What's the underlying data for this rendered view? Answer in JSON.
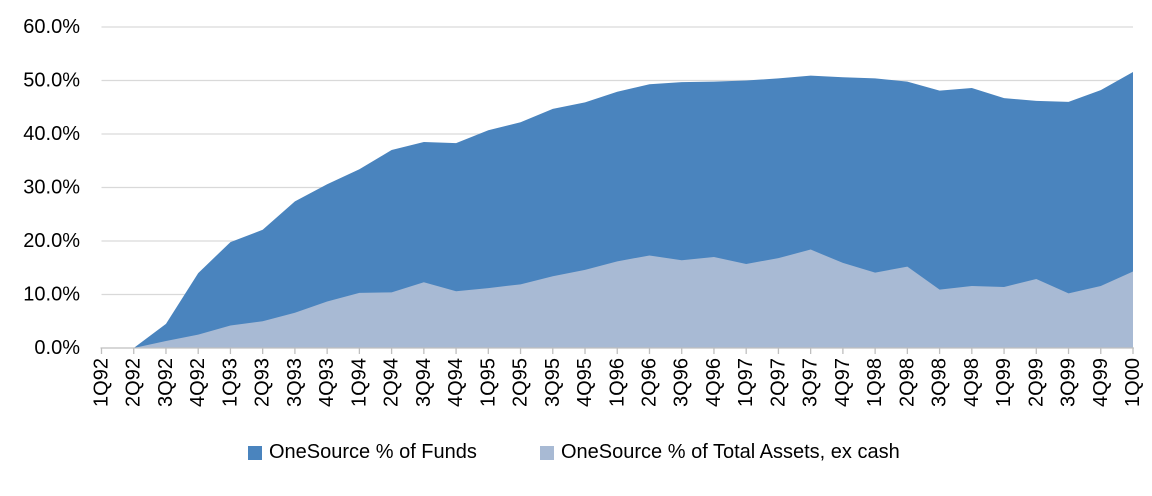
{
  "chart_data": {
    "type": "area",
    "title": "",
    "xlabel": "",
    "ylabel": "",
    "grid": true,
    "legend_position": "bottom",
    "overlap_mode": "overlaid",
    "categories": [
      "1Q92",
      "2Q92",
      "3Q92",
      "4Q92",
      "1Q93",
      "2Q93",
      "3Q93",
      "4Q93",
      "1Q94",
      "2Q94",
      "3Q94",
      "4Q94",
      "1Q95",
      "2Q95",
      "3Q95",
      "4Q95",
      "1Q96",
      "2Q96",
      "3Q96",
      "4Q96",
      "1Q97",
      "2Q97",
      "3Q97",
      "4Q97",
      "1Q98",
      "2Q98",
      "3Q98",
      "4Q98",
      "1Q99",
      "2Q99",
      "3Q99",
      "4Q99",
      "1Q00"
    ],
    "series": [
      {
        "name": "OneSource % of Funds",
        "color": "#4A84BE",
        "values": [
          0.0,
          0.0,
          4.5,
          14.0,
          19.8,
          22.1,
          27.4,
          30.6,
          33.4,
          37.0,
          38.5,
          38.3,
          40.7,
          42.2,
          44.7,
          45.9,
          47.9,
          49.3,
          49.7,
          49.8,
          50.0,
          50.4,
          50.9,
          50.6,
          50.4,
          49.8,
          48.1,
          48.6,
          46.7,
          46.2,
          46.0,
          48.2,
          51.6
        ]
      },
      {
        "name": "OneSource % of Total Assets, ex cash",
        "color": "#A8BAD4",
        "values": [
          0.0,
          0.0,
          1.3,
          2.5,
          4.2,
          5.0,
          6.6,
          8.7,
          10.3,
          10.4,
          12.3,
          10.6,
          11.2,
          11.9,
          13.4,
          14.6,
          16.2,
          17.3,
          16.4,
          17.0,
          15.7,
          16.8,
          18.4,
          15.9,
          14.1,
          15.2,
          10.9,
          11.6,
          11.4,
          12.9,
          10.2,
          11.6,
          14.3
        ]
      }
    ],
    "y_axis": {
      "min": 0,
      "max": 60,
      "step": 10,
      "tick_labels": [
        "0.0%",
        "10.0%",
        "20.0%",
        "30.0%",
        "40.0%",
        "50.0%",
        "60.0%"
      ]
    },
    "colors": {
      "gridline": "#D9D9D9",
      "axis_line": "#BFBFBF",
      "text": "#000000",
      "background": "#FFFFFF"
    }
  }
}
